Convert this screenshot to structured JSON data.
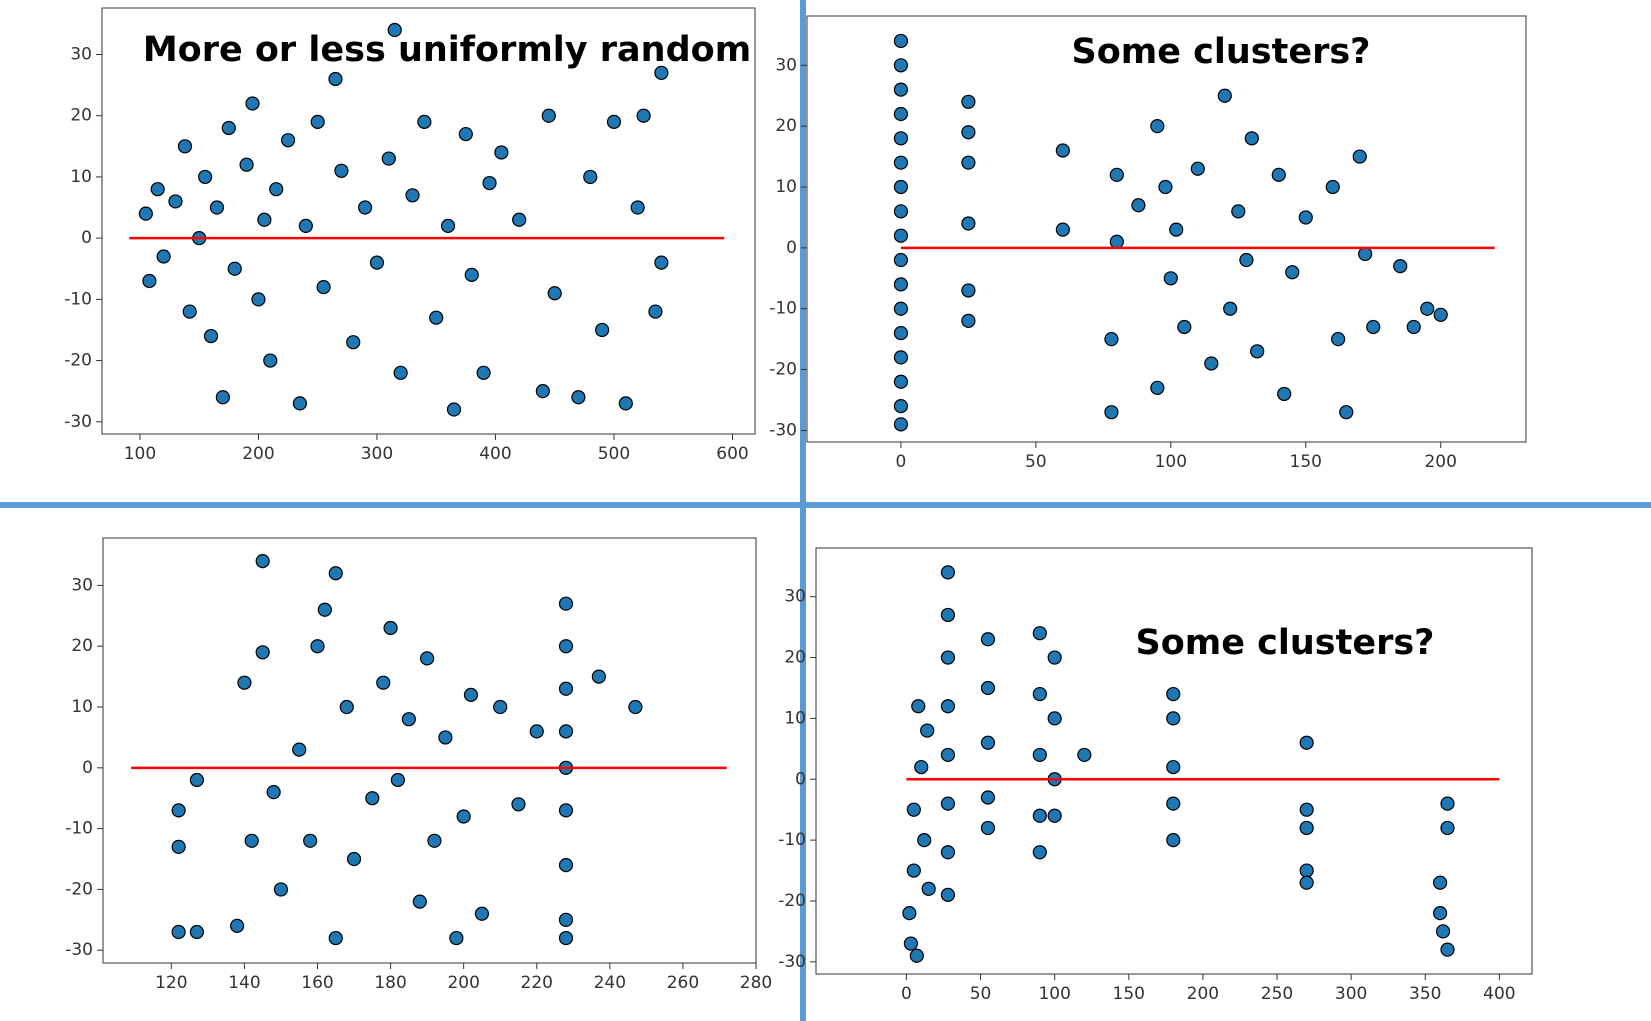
{
  "chart_data": [
    {
      "type": "scatter",
      "annotation": "More or less uniformly random",
      "color": "#1f77b4",
      "edgecolor": "#000000",
      "xlim": [
        68,
        619
      ],
      "ylim": [
        -32,
        37.6
      ],
      "xticks": [
        100,
        200,
        300,
        400,
        500,
        600
      ],
      "yticks": [
        -30,
        -20,
        -10,
        0,
        10,
        20,
        30
      ],
      "reference_line": {
        "y": 0,
        "x": [
          91,
          593
        ],
        "color": "#ff0000"
      },
      "x": [
        105,
        108,
        115,
        120,
        130,
        138,
        142,
        150,
        155,
        160,
        165,
        170,
        175,
        180,
        190,
        195,
        200,
        205,
        210,
        215,
        225,
        235,
        240,
        250,
        255,
        265,
        270,
        280,
        290,
        300,
        310,
        315,
        320,
        330,
        340,
        350,
        360,
        365,
        375,
        380,
        390,
        395,
        405,
        420,
        440,
        445,
        450,
        470,
        480,
        490,
        500,
        510,
        520,
        525,
        535,
        540,
        540
      ],
      "y": [
        4,
        -7,
        8,
        -3,
        6,
        15,
        -12,
        0,
        10,
        -16,
        5,
        -26,
        18,
        -5,
        12,
        22,
        -10,
        3,
        -20,
        8,
        16,
        -27,
        2,
        19,
        -8,
        26,
        11,
        -17,
        5,
        -4,
        13,
        34,
        -22,
        7,
        19,
        -13,
        2,
        -28,
        17,
        -6,
        -22,
        9,
        14,
        3,
        -25,
        20,
        -9,
        -26,
        10,
        -15,
        19,
        -27,
        5,
        20,
        -12,
        27,
        -4
      ]
    },
    {
      "type": "scatter",
      "annotation": "Some clusters?",
      "color": "#1f77b4",
      "edgecolor": "#000000",
      "xlim": [
        -34.8,
        231.6
      ],
      "ylim": [
        -31.9,
        38.1
      ],
      "xticks": [
        0,
        50,
        100,
        150,
        200
      ],
      "yticks": [
        -30,
        -20,
        -10,
        0,
        10,
        20,
        30
      ],
      "reference_line": {
        "y": 0,
        "x": [
          0,
          220
        ],
        "color": "#ff0000"
      },
      "x": [
        0,
        0,
        0,
        0,
        0,
        0,
        0,
        0,
        0,
        0,
        0,
        0,
        0,
        0,
        0,
        0,
        0,
        25,
        25,
        25,
        25,
        25,
        25,
        60,
        60,
        78,
        78,
        80,
        80,
        88,
        95,
        95,
        98,
        100,
        102,
        105,
        110,
        115,
        120,
        122,
        125,
        128,
        130,
        132,
        140,
        142,
        145,
        150,
        160,
        162,
        165,
        170,
        172,
        175,
        185,
        190,
        195,
        200
      ],
      "y": [
        34,
        30,
        26,
        22,
        18,
        14,
        10,
        6,
        2,
        -2,
        -6,
        -10,
        -14,
        -18,
        -22,
        -26,
        -29,
        24,
        19,
        14,
        4,
        -7,
        -12,
        16,
        3,
        -27,
        -15,
        1,
        12,
        7,
        20,
        -23,
        10,
        -5,
        3,
        -13,
        13,
        -19,
        25,
        -10,
        6,
        -2,
        18,
        -17,
        12,
        -24,
        -4,
        5,
        10,
        -15,
        -27,
        15,
        -1,
        -13,
        -3,
        -13,
        -10,
        -11
      ]
    },
    {
      "type": "scatter",
      "color": "#1f77b4",
      "edgecolor": "#000000",
      "xlim": [
        101.3,
        280
      ],
      "ylim": [
        -32.1,
        37.8
      ],
      "xticks": [
        120,
        140,
        160,
        180,
        200,
        220,
        240,
        260,
        280
      ],
      "yticks": [
        -30,
        -20,
        -10,
        0,
        10,
        20,
        30
      ],
      "reference_line": {
        "y": 0,
        "x": [
          109,
          272
        ],
        "color": "#ff0000"
      },
      "x": [
        122,
        122,
        122,
        127,
        127,
        138,
        140,
        142,
        145,
        145,
        148,
        150,
        155,
        158,
        160,
        162,
        165,
        165,
        168,
        170,
        175,
        178,
        180,
        182,
        185,
        188,
        190,
        192,
        195,
        198,
        200,
        202,
        205,
        210,
        215,
        220,
        228,
        228,
        228,
        228,
        228,
        228,
        228,
        228,
        228,
        237,
        247
      ],
      "y": [
        -27,
        -13,
        -7,
        -27,
        -2,
        -26,
        14,
        -12,
        34,
        19,
        -4,
        -20,
        3,
        -12,
        20,
        26,
        32,
        -28,
        10,
        -15,
        -5,
        14,
        23,
        -2,
        8,
        -22,
        18,
        -12,
        5,
        -28,
        -8,
        12,
        -24,
        10,
        -6,
        6,
        27,
        20,
        13,
        6,
        0,
        -7,
        -16,
        -25,
        -28,
        15,
        10
      ]
    },
    {
      "type": "scatter",
      "annotation": "Some clusters?",
      "color": "#1f77b4",
      "edgecolor": "#000000",
      "xlim": [
        -61,
        422
      ],
      "ylim": [
        -32,
        38
      ],
      "xticks": [
        0,
        50,
        100,
        150,
        200,
        250,
        300,
        350,
        400
      ],
      "yticks": [
        -30,
        -20,
        -10,
        0,
        10,
        20,
        30
      ],
      "reference_line": {
        "y": 0,
        "x": [
          0,
          400
        ],
        "color": "#ff0000"
      },
      "x": [
        2,
        3,
        5,
        5,
        7,
        8,
        10,
        12,
        14,
        15,
        28,
        28,
        28,
        28,
        28,
        28,
        28,
        28,
        55,
        55,
        55,
        55,
        55,
        90,
        90,
        90,
        90,
        90,
        100,
        100,
        100,
        100,
        120,
        180,
        180,
        180,
        180,
        180,
        270,
        270,
        270,
        270,
        270,
        360,
        360,
        362,
        365,
        365,
        365
      ],
      "y": [
        -22,
        -27,
        -15,
        -5,
        -29,
        12,
        2,
        -10,
        8,
        -18,
        34,
        27,
        20,
        12,
        4,
        -4,
        -12,
        -19,
        23,
        15,
        6,
        -3,
        -8,
        24,
        14,
        4,
        -6,
        -12,
        20,
        10,
        0,
        -6,
        4,
        14,
        10,
        2,
        -4,
        -10,
        6,
        -5,
        -8,
        -15,
        -17,
        -17,
        -22,
        -25,
        -4,
        -8,
        -28
      ]
    }
  ]
}
